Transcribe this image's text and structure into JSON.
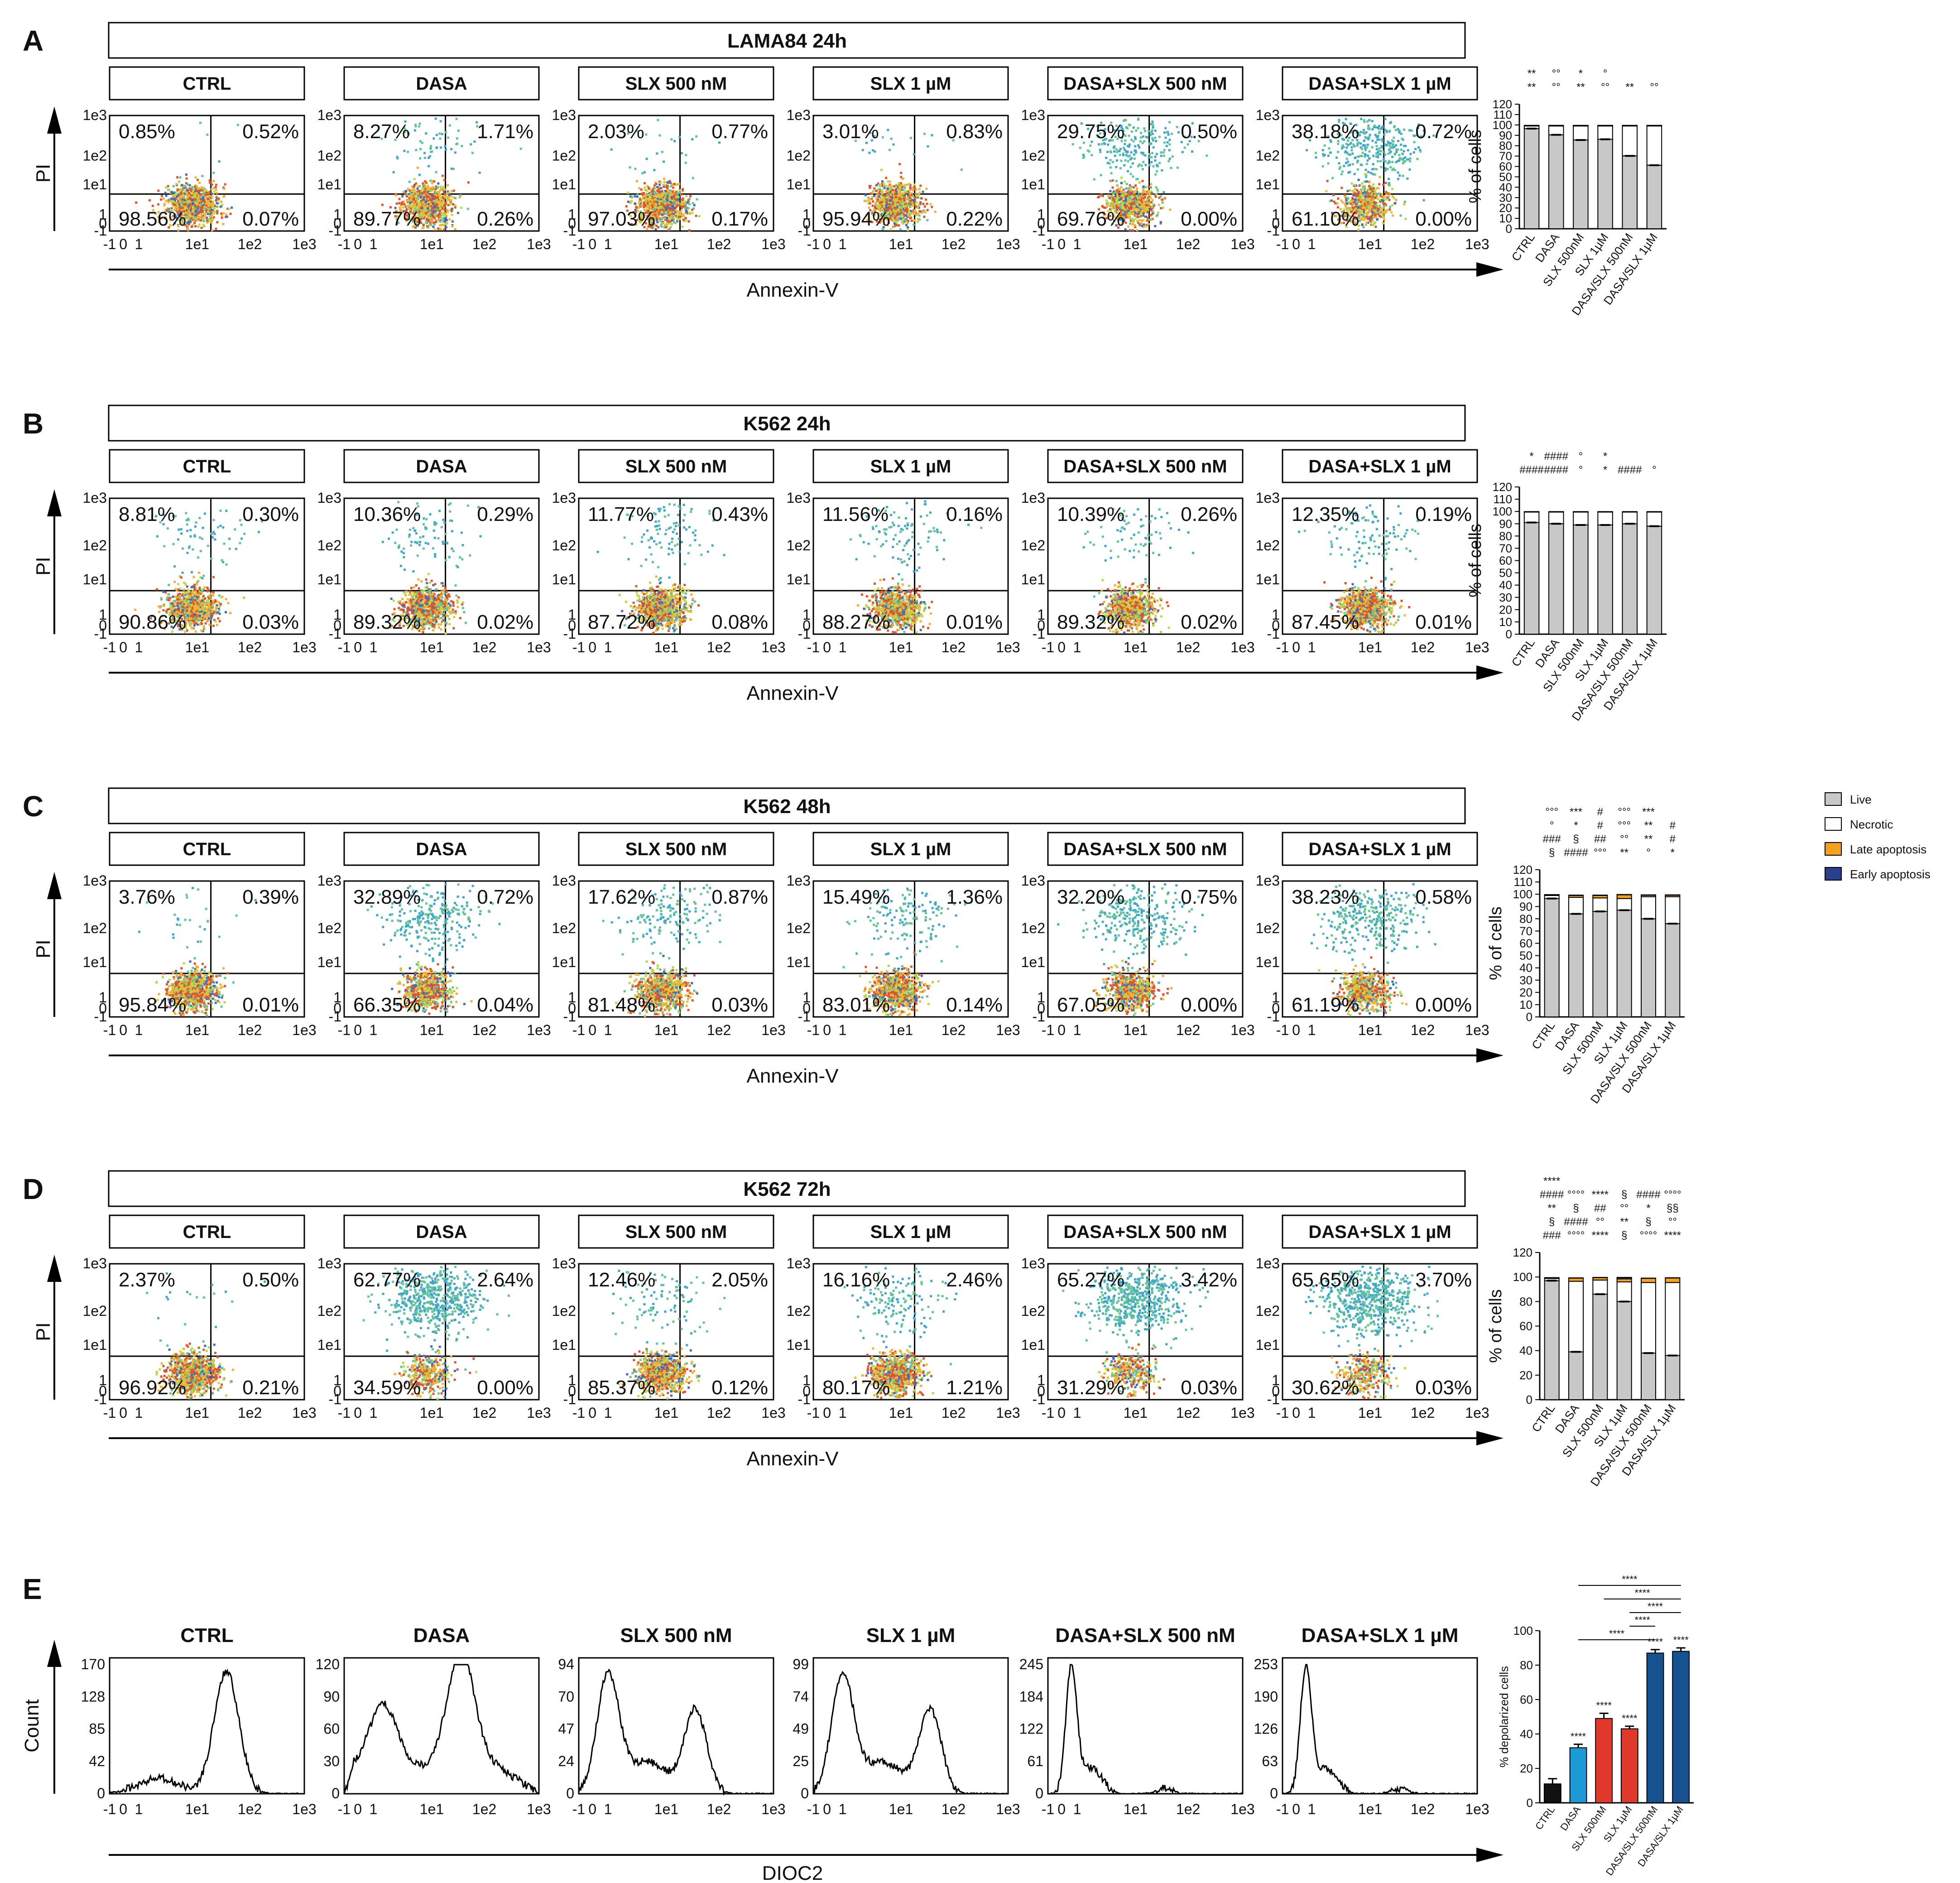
{
  "colors": {
    "live": "#c8c8c8",
    "necrotic": "#ffffff",
    "late": "#f5a11b",
    "early": "#2a3f8e",
    "e_bars": [
      "#111111",
      "#1c9ad6",
      "#e0392c",
      "#e0392c",
      "#15528f",
      "#15528f"
    ]
  },
  "conditions": [
    "CTRL",
    "DASA",
    "SLX 500 nM",
    "SLX 1 µM",
    "DASA+SLX 500 nM",
    "DASA+SLX 1 µM"
  ],
  "bar_categories": [
    "CTRL",
    "DASA",
    "SLX 500nM",
    "SLX 1µM",
    "DASA/SLX 500nM",
    "DASA/SLX 1µM"
  ],
  "facs_axes": {
    "x_ticks": [
      "-1",
      "0",
      "1",
      "1e1",
      "1e2",
      "1e3"
    ],
    "y_ticks": [
      "-1",
      "0",
      "1",
      "1e1",
      "1e2",
      "1e3"
    ],
    "xlabel": "Annexin-V",
    "ylabel": "PI"
  },
  "panels": [
    {
      "letter": "A",
      "title": "LAMA84 24h",
      "quadrants": [
        [
          "0.85%",
          "0.52%",
          "98.56%",
          "0.07%"
        ],
        [
          "8.27%",
          "1.71%",
          "89.77%",
          "0.26%"
        ],
        [
          "2.03%",
          "0.77%",
          "97.03%",
          "0.17%"
        ],
        [
          "3.01%",
          "0.83%",
          "95.94%",
          "0.22%"
        ],
        [
          "29.75%",
          "0.50%",
          "69.76%",
          "0.00%"
        ],
        [
          "38.18%",
          "0.72%",
          "61.10%",
          "0.00%"
        ]
      ],
      "chart_data": {
        "type": "bar",
        "stacked": true,
        "ylabel": "% of cells",
        "ylim": [
          0,
          120
        ],
        "yticks": [
          0,
          10,
          20,
          30,
          40,
          50,
          60,
          70,
          80,
          90,
          100,
          110,
          120
        ],
        "categories": [
          "CTRL",
          "DASA",
          "SLX 500nM",
          "SLX 1µM",
          "DASA/SLX 500nM",
          "DASA/SLX 1µM"
        ],
        "series": [
          {
            "name": "Live",
            "values": [
              96.5,
              90.5,
              85.5,
              86.2,
              70.2,
              61.2
            ]
          },
          {
            "name": "Necrotic",
            "values": [
              2.5,
              8.5,
              13.5,
              12.8,
              28.8,
              37.8
            ]
          },
          {
            "name": "Late apoptosis",
            "values": [
              0.5,
              0.5,
              0.5,
              0.5,
              0.5,
              0.5
            ]
          },
          {
            "name": "Early apoptosis",
            "values": [
              0.1,
              0.1,
              0.1,
              0.1,
              0.1,
              0.1
            ]
          }
        ],
        "annotations": [
          "**",
          "°°",
          "**",
          "°°",
          "**",
          "°°",
          "**",
          "°°",
          "*",
          "°"
        ]
      }
    },
    {
      "letter": "B",
      "title": "K562 24h",
      "quadrants": [
        [
          "8.81%",
          "0.30%",
          "90.86%",
          "0.03%"
        ],
        [
          "10.36%",
          "0.29%",
          "89.32%",
          "0.02%"
        ],
        [
          "11.77%",
          "0.43%",
          "87.72%",
          "0.08%"
        ],
        [
          "11.56%",
          "0.16%",
          "88.27%",
          "0.01%"
        ],
        [
          "10.39%",
          "0.26%",
          "89.32%",
          "0.02%"
        ],
        [
          "12.35%",
          "0.19%",
          "87.45%",
          "0.01%"
        ]
      ],
      "chart_data": {
        "type": "bar",
        "stacked": true,
        "ylabel": "% of cells",
        "ylim": [
          0,
          120
        ],
        "yticks": [
          0,
          10,
          20,
          30,
          40,
          50,
          60,
          70,
          80,
          90,
          100,
          110,
          120
        ],
        "categories": [
          "CTRL",
          "DASA",
          "SLX 500nM",
          "SLX 1µM",
          "DASA/SLX 500nM",
          "DASA/SLX 1µM"
        ],
        "series": [
          {
            "name": "Live",
            "values": [
              91,
              90,
              89,
              89,
              90,
              88
            ]
          },
          {
            "name": "Necrotic",
            "values": [
              8.5,
              9.5,
              10.5,
              10.5,
              9.5,
              11.5
            ]
          },
          {
            "name": "Late apoptosis",
            "values": [
              0.3,
              0.3,
              0.3,
              0.3,
              0.3,
              0.3
            ]
          },
          {
            "name": "Early apoptosis",
            "values": [
              0.1,
              0.1,
              0.1,
              0.1,
              0.1,
              0.1
            ]
          }
        ],
        "annotations": [
          "####",
          "####",
          "°",
          "*",
          "####",
          "°",
          "*",
          "####",
          "°",
          "*"
        ]
      }
    },
    {
      "letter": "C",
      "title": "K562 48h",
      "quadrants": [
        [
          "3.76%",
          "0.39%",
          "95.84%",
          "0.01%"
        ],
        [
          "32.89%",
          "0.72%",
          "66.35%",
          "0.04%"
        ],
        [
          "17.62%",
          "0.87%",
          "81.48%",
          "0.03%"
        ],
        [
          "15.49%",
          "1.36%",
          "83.01%",
          "0.14%"
        ],
        [
          "32.20%",
          "0.75%",
          "67.05%",
          "0.00%"
        ],
        [
          "38.23%",
          "0.58%",
          "61.19%",
          "0.00%"
        ]
      ],
      "chart_data": {
        "type": "bar",
        "stacked": true,
        "ylabel": "% of cells",
        "ylim": [
          0,
          120
        ],
        "yticks": [
          0,
          10,
          20,
          30,
          40,
          50,
          60,
          70,
          80,
          90,
          100,
          110,
          120
        ],
        "categories": [
          "CTRL",
          "DASA",
          "SLX 500nM",
          "SLX 1µM",
          "DASA/SLX 500nM",
          "DASA/SLX 1µM"
        ],
        "series": [
          {
            "name": "Live",
            "values": [
              96.5,
              84,
              86,
              87,
              80,
              76
            ]
          },
          {
            "name": "Necrotic",
            "values": [
              2.5,
              13.5,
              11,
              9.5,
              18,
              22
            ]
          },
          {
            "name": "Late apoptosis",
            "values": [
              0.5,
              1.5,
              2,
              3,
              1.2,
              1.2
            ]
          },
          {
            "name": "Early apoptosis",
            "values": [
              0.2,
              0.3,
              0.3,
              0.3,
              0.3,
              0.3
            ]
          }
        ],
        "annotations": [
          "§",
          "####",
          "°°°",
          "**",
          "°",
          "*",
          "###",
          "§",
          "##",
          "°°",
          "**",
          "#",
          "°",
          "*",
          "#",
          "°°°",
          "**",
          "#",
          "°°°",
          "***",
          "#",
          "°°°",
          "***"
        ]
      }
    },
    {
      "letter": "D",
      "title": "K562 72h",
      "quadrants": [
        [
          "2.37%",
          "0.50%",
          "96.92%",
          "0.21%"
        ],
        [
          "62.77%",
          "2.64%",
          "34.59%",
          "0.00%"
        ],
        [
          "12.46%",
          "2.05%",
          "85.37%",
          "0.12%"
        ],
        [
          "16.16%",
          "2.46%",
          "80.17%",
          "1.21%"
        ],
        [
          "65.27%",
          "3.42%",
          "31.29%",
          "0.03%"
        ],
        [
          "65.65%",
          "3.70%",
          "30.62%",
          "0.03%"
        ]
      ],
      "chart_data": {
        "type": "bar",
        "stacked": true,
        "ylabel": "% of cells",
        "ylim": [
          0,
          120
        ],
        "yticks": [
          0,
          20,
          40,
          60,
          80,
          100,
          120
        ],
        "categories": [
          "CTRL",
          "DASA",
          "SLX 500nM",
          "SLX 1µM",
          "DASA/SLX 500nM",
          "DASA/SLX 1µM"
        ],
        "series": [
          {
            "name": "Live",
            "values": [
              97,
              39,
              86,
              80,
              38,
              36
            ]
          },
          {
            "name": "Necrotic",
            "values": [
              1.8,
              57.5,
              11.5,
              16,
              57.5,
              59.5
            ]
          },
          {
            "name": "Late apoptosis",
            "values": [
              0.5,
              2.6,
              2,
              2.5,
              3.4,
              3.7
            ]
          },
          {
            "name": "Early apoptosis",
            "values": [
              0.2,
              0.2,
              0.2,
              1.2,
              0.2,
              0.2
            ]
          }
        ],
        "annotations": [
          "###",
          "°°°°",
          "****",
          "§",
          "°°°°",
          "****",
          "§",
          "####",
          "°°",
          "**",
          "§",
          "°°",
          "**",
          "§",
          "##",
          "°°",
          "*",
          "§§",
          "####",
          "°°°°",
          "****",
          "§",
          "####",
          "°°°°",
          "****"
        ]
      }
    }
  ],
  "legend": {
    "items": [
      "Live",
      "Necrotic",
      "Late apoptosis",
      "Early apoptosis"
    ]
  },
  "panel_e": {
    "letter": "E",
    "xlabel": "DIOC2",
    "ylabel": "Count",
    "x_ticks": [
      "-1",
      "0",
      "1",
      "1e1",
      "1e2",
      "1e3"
    ],
    "histograms": [
      {
        "title": "CTRL",
        "yticks": [
          "0",
          "42",
          "85",
          "128",
          "170"
        ]
      },
      {
        "title": "DASA",
        "yticks": [
          "0",
          "30",
          "60",
          "90",
          "120"
        ]
      },
      {
        "title": "SLX 500 nM",
        "yticks": [
          "0",
          "24",
          "47",
          "70",
          "94"
        ]
      },
      {
        "title": "SLX 1 µM",
        "yticks": [
          "0",
          "25",
          "49",
          "74",
          "99"
        ]
      },
      {
        "title": "DASA+SLX 500 nM",
        "yticks": [
          "0",
          "61",
          "122",
          "184",
          "245"
        ]
      },
      {
        "title": "DASA+SLX 1 µM",
        "yticks": [
          "0",
          "63",
          "126",
          "190",
          "253"
        ]
      }
    ],
    "chart_data": {
      "type": "bar",
      "ylabel": "% depolarized cells",
      "ylim": [
        0,
        100
      ],
      "yticks": [
        0,
        20,
        40,
        60,
        80,
        100
      ],
      "categories": [
        "CTRL",
        "DASA",
        "SLX 500nM",
        "SLX 1µM",
        "DASA/SLX 500nM",
        "DASA/SLX 1µM"
      ],
      "values": [
        11,
        32,
        49,
        43,
        87,
        88
      ],
      "errors": [
        3,
        2,
        3,
        1.5,
        2,
        2
      ],
      "annotations": [
        "****",
        "****",
        "****",
        "****",
        "****",
        "****",
        "****",
        "****",
        "****",
        "****"
      ]
    }
  }
}
